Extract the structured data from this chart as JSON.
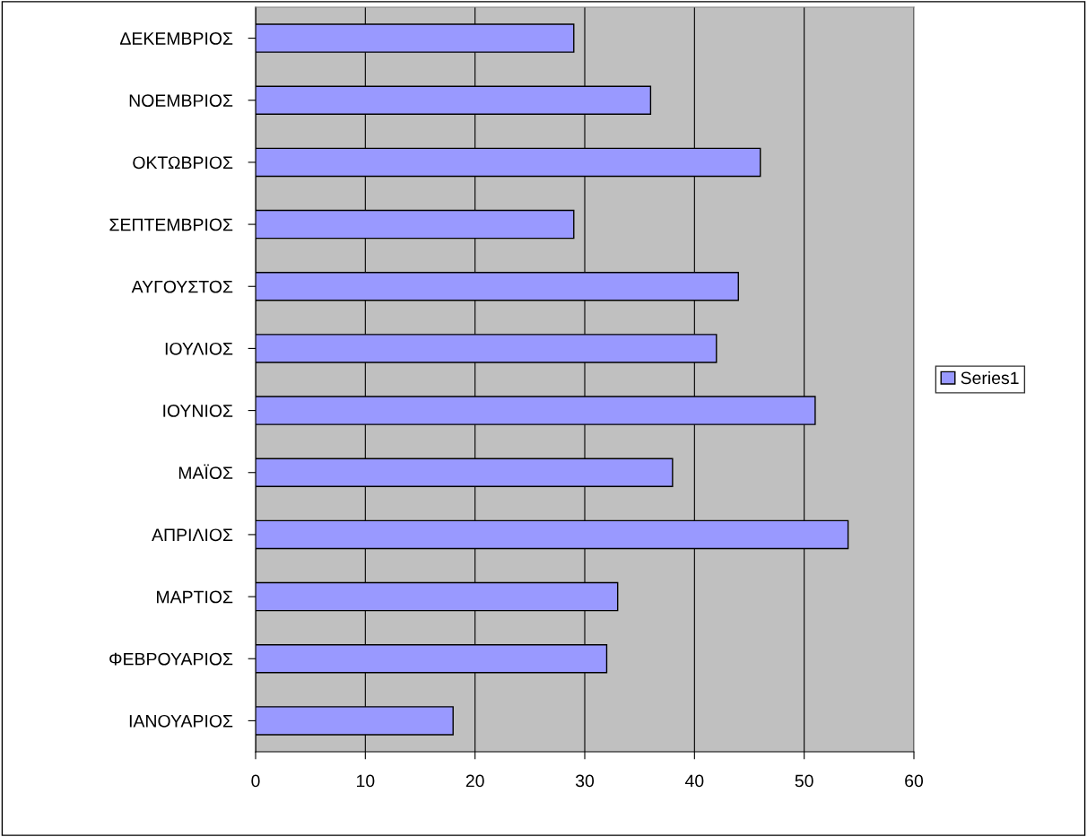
{
  "chart_data": {
    "type": "bar",
    "orientation": "horizontal",
    "categories": [
      "ΔΕΚΕΜΒΡΙΟΣ",
      "ΝΟΕΜΒΡΙΟΣ",
      "ΟΚΤΩΒΡΙΟΣ",
      "ΣΕΠΤΕΜΒΡΙΟΣ",
      "ΑΥΓΟΥΣΤΟΣ",
      "ΙΟΥΛΙΟΣ",
      "ΙΟΥΝΙΟΣ",
      "ΜΑΪΟΣ",
      "ΑΠΡΙΛΙΟΣ",
      "ΜΑΡΤΙΟΣ",
      "ΦΕΒΡΟΥΑΡΙΟΣ",
      "ΙΑΝΟΥΑΡΙΟΣ"
    ],
    "series": [
      {
        "name": "Series1",
        "color": "#9999ff",
        "values": [
          29,
          36,
          46,
          29,
          44,
          42,
          51,
          38,
          54,
          33,
          32,
          18
        ]
      }
    ],
    "xlim": [
      0,
      60
    ],
    "xticks": [
      0,
      10,
      20,
      30,
      40,
      50,
      60
    ],
    "grid": "x",
    "legend": "right"
  }
}
